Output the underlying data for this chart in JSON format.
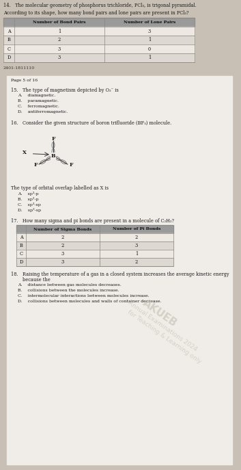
{
  "bg_top_color": "#c8c0b4",
  "bg_bottom_color": "#c0b8ac",
  "white_page_color": "#f0ede8",
  "tan_bg": "#c8c0b4",
  "q14_line1": "14.   The molecular geometry of phosphorus trichloride, PCl₃, is trigonal pyramidal.",
  "q14_line2": "According to its shape, how many bond pairs and lone pairs are present in PCl₃?",
  "table14_headers": [
    "",
    "Number of Bond Pairs",
    "Number of Lone Pairs"
  ],
  "table14_rows": [
    [
      "A",
      "1",
      "3"
    ],
    [
      "B",
      "2",
      "1"
    ],
    [
      "C",
      "3",
      "0"
    ],
    [
      "D",
      "3",
      "1"
    ]
  ],
  "footer_text": "2401-1811110",
  "page_label": "Page 5 of 16",
  "q15_text": "15.   The type of magnetism depicted by O₂⁻ is",
  "q15_options": [
    "A.    diamagnetic.",
    "B.    paramagnetic.",
    "C.    ferromagnetic.",
    "D.    antiferromagnetic."
  ],
  "q16_text": "16.   Consider the given structure of boron trifluoride (BF₃) molecule.",
  "q16_overlap_text": "The type of orbital overlap labelled as X is",
  "q16_options": [
    "A.    sp³-p",
    "B.    sp²-p",
    "C.    sp³-sp",
    "D.    sp²-sp"
  ],
  "q17_text": "17.   How many sigma and pi bonds are present in a molecule of C₂H₂?",
  "table17_headers": [
    "",
    "Number of Sigma Bonds",
    "Number of Pi Bonds"
  ],
  "table17_rows": [
    [
      "A",
      "2",
      "2"
    ],
    [
      "B",
      "2",
      "3"
    ],
    [
      "C",
      "3",
      "1"
    ],
    [
      "D",
      "3",
      "2"
    ]
  ],
  "q18_line1": "18.   Raising the temperature of a gas in a closed system increases the average kinetic energy",
  "q18_line2": "        because the",
  "q18_options": [
    "A.    distance between gas molecules decreases.",
    "B.    collisions between the molecules increase.",
    "C.    intermolecular interactions between molecules increase.",
    "D.    collisions between molecules and walls of container decrease."
  ],
  "watermark1": "AKUEB",
  "watermark2": "Annual Examinations 2024",
  "watermark3": "for Teaching & Learning only",
  "header_color": "#9a9a9a",
  "row_light": "#ede8e2",
  "row_dark": "#ddd8d2",
  "border_color": "#888880",
  "text_color": "#1a1a1a",
  "text_color2": "#2a2a2a"
}
